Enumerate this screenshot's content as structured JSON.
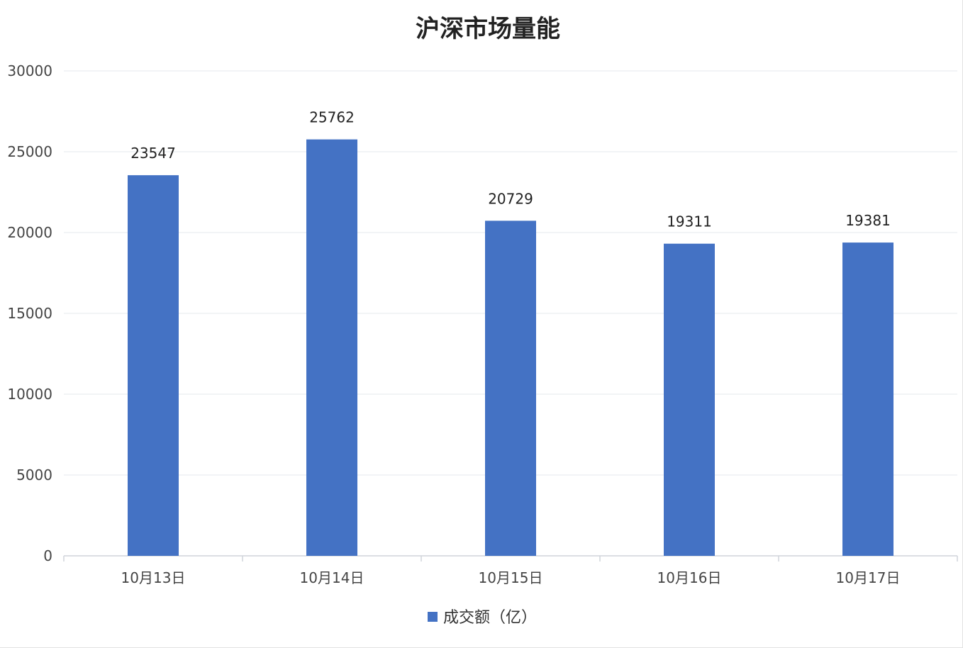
{
  "chart_data": {
    "type": "bar",
    "title": "沪深市场量能",
    "xlabel": "",
    "ylabel": "",
    "categories": [
      "10月13日",
      "10月14日",
      "10月15日",
      "10月16日",
      "10月17日"
    ],
    "series": [
      {
        "name": "成交额（亿）",
        "values": [
          23547,
          25762,
          20729,
          19311,
          19381
        ],
        "color": "#4472C4"
      }
    ],
    "data_labels": [
      "23547",
      "25762",
      "20729",
      "19311",
      "19381"
    ],
    "ylim": [
      0,
      30000
    ],
    "yticks": [
      "0",
      "5000",
      "10000",
      "15000",
      "20000",
      "25000",
      "30000"
    ],
    "grid": true,
    "legend_position": "bottom"
  }
}
